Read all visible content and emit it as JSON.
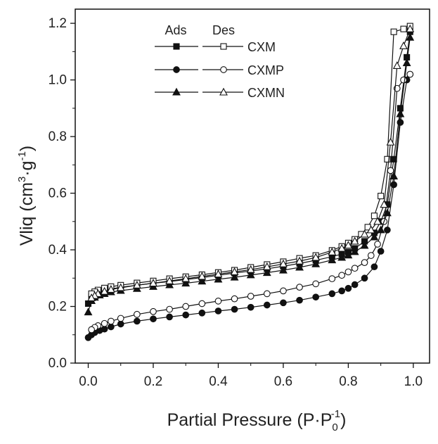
{
  "chart_data": {
    "type": "line",
    "title": "",
    "xlabel": "Partial Pressure (P·P",
    "xlabel_sub": "0",
    "xlabel_sup": "-1",
    "xlabel_end": ")",
    "ylabel": "Vliq (cm",
    "ylabel_sup1": "3",
    "ylabel_mid": "·g",
    "ylabel_sup2": "-1",
    "ylabel_end": ")",
    "xlim": [
      -0.04,
      1.05
    ],
    "ylim": [
      0.0,
      1.25
    ],
    "xticks": [
      "0.0",
      "0.2",
      "0.4",
      "0.6",
      "0.8",
      "1.0"
    ],
    "yticks": [
      "0.0",
      "0.2",
      "0.4",
      "0.6",
      "0.8",
      "1.0",
      "1.2"
    ],
    "legend": {
      "placement": "top-left",
      "col_ads": "Ads",
      "col_des": "Des",
      "entries": [
        "CXM",
        "CXMP",
        "CXMN"
      ]
    },
    "series": [
      {
        "name": "CXM",
        "marker": "square",
        "branch": "Ads",
        "x": [
          0.0,
          0.01,
          0.02,
          0.035,
          0.05,
          0.07,
          0.1,
          0.15,
          0.2,
          0.25,
          0.3,
          0.35,
          0.4,
          0.45,
          0.5,
          0.55,
          0.6,
          0.65,
          0.7,
          0.75,
          0.78,
          0.8,
          0.82,
          0.85,
          0.88,
          0.9,
          0.92,
          0.94,
          0.96,
          0.98,
          0.99
        ],
        "y": [
          0.21,
          0.235,
          0.245,
          0.252,
          0.256,
          0.262,
          0.268,
          0.275,
          0.282,
          0.288,
          0.295,
          0.302,
          0.31,
          0.318,
          0.325,
          0.333,
          0.342,
          0.352,
          0.363,
          0.376,
          0.385,
          0.392,
          0.405,
          0.43,
          0.46,
          0.5,
          0.56,
          0.72,
          0.9,
          1.08,
          1.17
        ]
      },
      {
        "name": "CXM",
        "marker": "square",
        "branch": "Des",
        "x": [
          0.99,
          0.97,
          0.94,
          0.92,
          0.9,
          0.88,
          0.86,
          0.84,
          0.82,
          0.8,
          0.78,
          0.75,
          0.7,
          0.65,
          0.6,
          0.55,
          0.5,
          0.45,
          0.4,
          0.35,
          0.3,
          0.25,
          0.2,
          0.15,
          0.1,
          0.07,
          0.05,
          0.03,
          0.02,
          0.01
        ],
        "y": [
          1.19,
          1.18,
          1.17,
          0.72,
          0.59,
          0.52,
          0.48,
          0.455,
          0.437,
          0.424,
          0.412,
          0.398,
          0.38,
          0.37,
          0.358,
          0.348,
          0.338,
          0.328,
          0.32,
          0.312,
          0.305,
          0.298,
          0.29,
          0.283,
          0.275,
          0.27,
          0.265,
          0.258,
          0.252,
          0.245
        ]
      },
      {
        "name": "CXMP",
        "marker": "circle",
        "branch": "Ads",
        "x": [
          0.0,
          0.01,
          0.02,
          0.035,
          0.05,
          0.07,
          0.1,
          0.15,
          0.2,
          0.25,
          0.3,
          0.35,
          0.4,
          0.45,
          0.5,
          0.55,
          0.6,
          0.65,
          0.7,
          0.75,
          0.78,
          0.8,
          0.82,
          0.85,
          0.88,
          0.9,
          0.92,
          0.94,
          0.96,
          0.98,
          0.99
        ],
        "y": [
          0.09,
          0.1,
          0.108,
          0.115,
          0.12,
          0.128,
          0.138,
          0.148,
          0.156,
          0.163,
          0.17,
          0.177,
          0.184,
          0.19,
          0.197,
          0.205,
          0.213,
          0.222,
          0.233,
          0.245,
          0.255,
          0.264,
          0.277,
          0.3,
          0.34,
          0.395,
          0.47,
          0.63,
          0.85,
          1.0,
          1.02
        ]
      },
      {
        "name": "CXMP",
        "marker": "circle",
        "branch": "Des",
        "x": [
          0.99,
          0.97,
          0.95,
          0.93,
          0.91,
          0.89,
          0.87,
          0.85,
          0.82,
          0.8,
          0.78,
          0.75,
          0.7,
          0.65,
          0.6,
          0.55,
          0.5,
          0.45,
          0.4,
          0.35,
          0.3,
          0.25,
          0.2,
          0.15,
          0.1,
          0.07,
          0.05,
          0.03,
          0.02,
          0.01
        ],
        "y": [
          1.02,
          1.0,
          0.97,
          0.68,
          0.5,
          0.42,
          0.38,
          0.355,
          0.335,
          0.322,
          0.31,
          0.298,
          0.28,
          0.268,
          0.255,
          0.245,
          0.236,
          0.227,
          0.219,
          0.21,
          0.2,
          0.19,
          0.182,
          0.172,
          0.158,
          0.148,
          0.14,
          0.132,
          0.126,
          0.118
        ]
      },
      {
        "name": "CXMN",
        "marker": "triangle",
        "branch": "Ads",
        "x": [
          0.0,
          0.01,
          0.02,
          0.035,
          0.05,
          0.07,
          0.1,
          0.15,
          0.2,
          0.25,
          0.3,
          0.35,
          0.4,
          0.45,
          0.5,
          0.55,
          0.6,
          0.65,
          0.7,
          0.75,
          0.78,
          0.8,
          0.82,
          0.85,
          0.88,
          0.9,
          0.92,
          0.94,
          0.96,
          0.98,
          0.99
        ],
        "y": [
          0.18,
          0.22,
          0.232,
          0.24,
          0.245,
          0.251,
          0.256,
          0.263,
          0.27,
          0.276,
          0.282,
          0.289,
          0.296,
          0.303,
          0.311,
          0.319,
          0.328,
          0.338,
          0.35,
          0.364,
          0.373,
          0.381,
          0.393,
          0.415,
          0.445,
          0.47,
          0.53,
          0.66,
          0.88,
          1.06,
          1.15
        ]
      },
      {
        "name": "CXMN",
        "marker": "triangle",
        "branch": "Des",
        "x": [
          0.99,
          0.97,
          0.95,
          0.93,
          0.91,
          0.89,
          0.87,
          0.85,
          0.82,
          0.8,
          0.78,
          0.75,
          0.7,
          0.65,
          0.6,
          0.55,
          0.5,
          0.45,
          0.4,
          0.35,
          0.3,
          0.25,
          0.2,
          0.15,
          0.1,
          0.07,
          0.05,
          0.03,
          0.02,
          0.01
        ],
        "y": [
          1.18,
          1.12,
          1.05,
          0.78,
          0.56,
          0.5,
          0.47,
          0.455,
          0.43,
          0.416,
          0.405,
          0.392,
          0.373,
          0.36,
          0.35,
          0.34,
          0.33,
          0.322,
          0.314,
          0.306,
          0.298,
          0.29,
          0.282,
          0.275,
          0.266,
          0.26,
          0.253,
          0.245,
          0.238,
          0.23
        ]
      }
    ]
  }
}
